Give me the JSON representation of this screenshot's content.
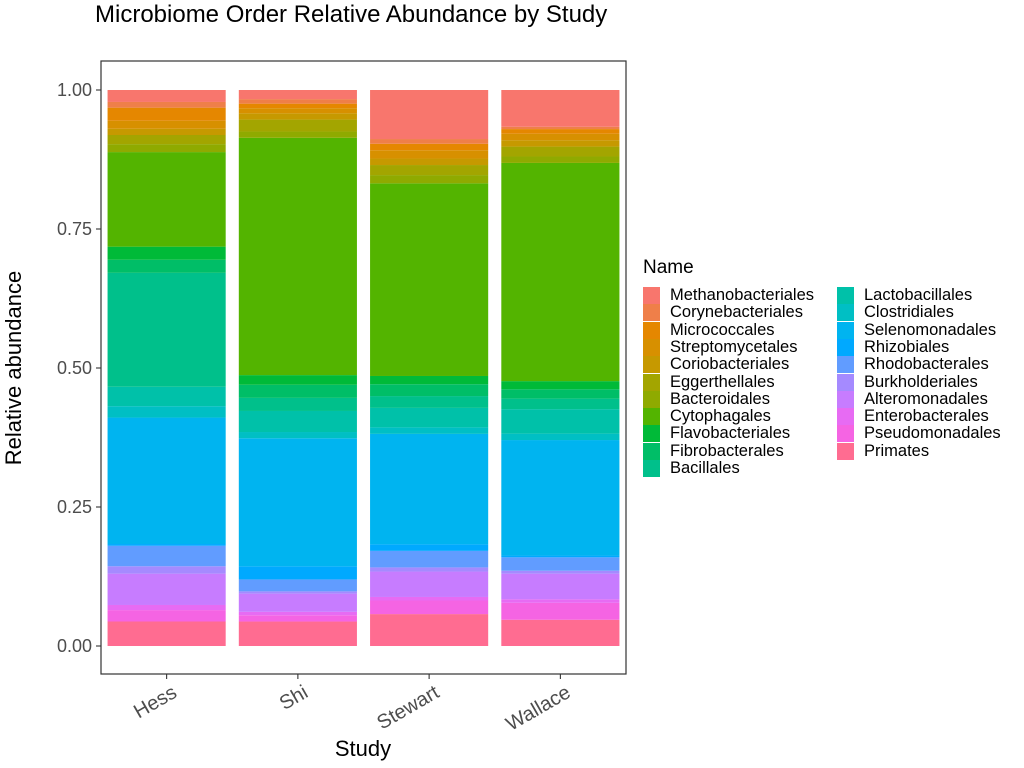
{
  "chart_data": {
    "type": "bar",
    "stacked": true,
    "title": "Microbiome Order Relative Abundance by Study",
    "xlabel": "Study",
    "ylabel": "Relative abundance",
    "ylim": [
      0,
      1
    ],
    "yticks": [
      "0.00",
      "0.25",
      "0.50",
      "0.75",
      "1.00"
    ],
    "grid": false,
    "legend_title": "Name",
    "legend_position": "right",
    "categories": [
      "Hess",
      "Shi",
      "Stewart",
      "Wallace"
    ],
    "series": [
      {
        "name": "Methanobacteriales",
        "color": "#F8766D",
        "values": [
          0.021,
          0.016,
          0.083,
          0.063
        ]
      },
      {
        "name": "Corynebacteriales",
        "color": "#EF7F49",
        "values": [
          0.01,
          0.008,
          0.008,
          0.004
        ]
      },
      {
        "name": "Micrococcales",
        "color": "#E58700",
        "values": [
          0.023,
          0.008,
          0.011,
          0.008
        ]
      },
      {
        "name": "Streptomycetales",
        "color": "#D79000",
        "values": [
          0.014,
          0.009,
          0.014,
          0.011
        ]
      },
      {
        "name": "Coriobacteriales",
        "color": "#C69900",
        "values": [
          0.011,
          0.011,
          0.011,
          0.011
        ]
      },
      {
        "name": "Eggerthellales",
        "color": "#A3A500",
        "values": [
          0.016,
          0.021,
          0.017,
          0.017
        ]
      },
      {
        "name": "Bacteroidales",
        "color": "#8FAA00",
        "values": [
          0.014,
          0.011,
          0.014,
          0.011
        ]
      },
      {
        "name": "Cytophagales",
        "color": "#53B400",
        "values": [
          0.166,
          0.417,
          0.326,
          0.374
        ]
      },
      {
        "name": "Flavobacteriales",
        "color": "#00BA38",
        "values": [
          0.023,
          0.017,
          0.014,
          0.014
        ]
      },
      {
        "name": "Fibrobacterales",
        "color": "#00BE67",
        "values": [
          0.023,
          0.023,
          0.02,
          0.016
        ]
      },
      {
        "name": "Bacillales",
        "color": "#00C08B",
        "values": [
          0.2,
          0.023,
          0.02,
          0.018
        ]
      },
      {
        "name": "Lactobacillales",
        "color": "#00C1A9",
        "values": [
          0.034,
          0.037,
          0.033,
          0.042
        ]
      },
      {
        "name": "Clostridiales",
        "color": "#00BFC4",
        "values": [
          0.02,
          0.011,
          0.011,
          0.011
        ]
      },
      {
        "name": "Selenomonadales",
        "color": "#00B4F0",
        "values": [
          0.222,
          0.225,
          0.187,
          0.198
        ]
      },
      {
        "name": "Rhizobiales",
        "color": "#00A9FF",
        "values": [
          0.003,
          0.023,
          0.011,
          0.003
        ]
      },
      {
        "name": "Rhodobacterales",
        "color": "#619CFF",
        "values": [
          0.036,
          0.021,
          0.028,
          0.023
        ]
      },
      {
        "name": "Burkholderiales",
        "color": "#A58AFF",
        "values": [
          0.013,
          0.004,
          0.007,
          0.005
        ]
      },
      {
        "name": "Alteromonadales",
        "color": "#C77CFF",
        "values": [
          0.055,
          0.032,
          0.043,
          0.044
        ]
      },
      {
        "name": "Enterobacterales",
        "color": "#E76BF3",
        "values": [
          0.009,
          0.006,
          0.006,
          0.006
        ]
      },
      {
        "name": "Pseudomonadales",
        "color": "#F564E3",
        "values": [
          0.02,
          0.011,
          0.023,
          0.029
        ]
      },
      {
        "name": "Primates",
        "color": "#FF6C91",
        "values": [
          0.043,
          0.043,
          0.054,
          0.045
        ]
      }
    ],
    "legend_columns": [
      [
        "Methanobacteriales",
        "Corynebacteriales",
        "Micrococcales",
        "Streptomycetales",
        "Coriobacteriales",
        "Eggerthellales",
        "Bacteroidales",
        "Cytophagales",
        "Flavobacteriales",
        "Fibrobacterales",
        "Bacillales"
      ],
      [
        "Lactobacillales",
        "Clostridiales",
        "Selenomonadales",
        "Rhizobiales",
        "Rhodobacterales",
        "Burkholderiales",
        "Alteromonadales",
        "Enterobacterales",
        "Pseudomonadales",
        "Primates"
      ]
    ]
  }
}
